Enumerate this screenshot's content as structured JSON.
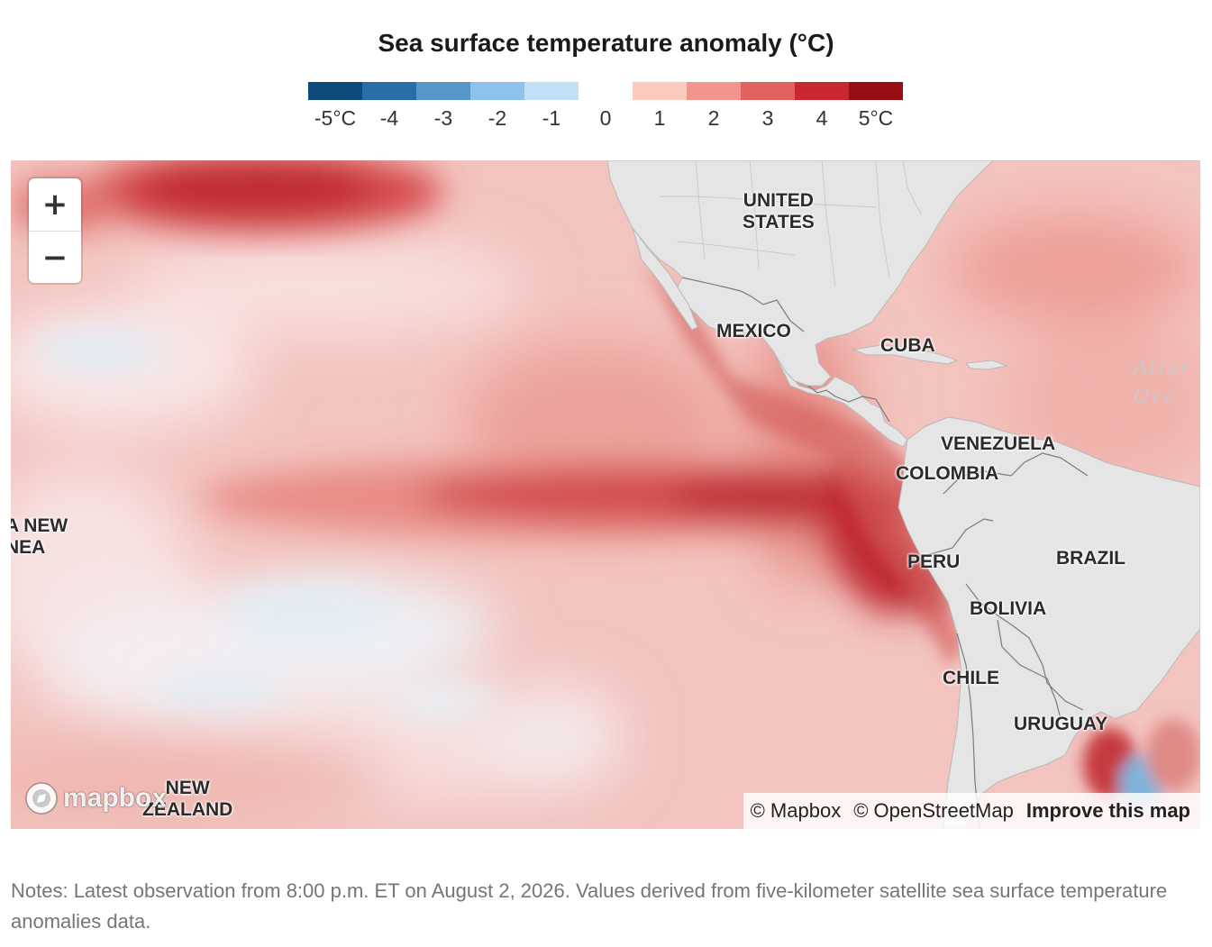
{
  "title": "Sea surface temperature anomaly (°C)",
  "legend": {
    "colors": [
      "#0e4a7b",
      "#2a6ea8",
      "#5597cb",
      "#8ec2ec",
      "#bfe0f6",
      "#ffffff",
      "#fbcbbd",
      "#f0958d",
      "#e0625d",
      "#c8282e",
      "#990d14"
    ],
    "labels": [
      "-5°C",
      "-4",
      "-3",
      "-2",
      "-1",
      "0",
      "1",
      "2",
      "3",
      "4",
      "5°C"
    ]
  },
  "map": {
    "countries": {
      "united_states": "UNITED\nSTATES",
      "mexico": "MEXICO",
      "cuba": "CUBA",
      "venezuela": "VENEZUELA",
      "colombia": "COLOMBIA",
      "peru": "PERU",
      "brazil": "BRAZIL",
      "bolivia": "BOLIVIA",
      "chile": "CHILE",
      "uruguay": "URUGUAY",
      "papua_new_guinea": "A NEW\nNEA",
      "new_zealand": "NEW\nZEALAND"
    },
    "ocean_label": "Atlar\nOce",
    "zoom_in": "+",
    "zoom_out": "−",
    "logo": "mapbox",
    "attribution": {
      "mapbox": "© Mapbox",
      "osm": "© OpenStreetMap",
      "improve": "Improve this map"
    }
  },
  "notes": "Notes: Latest observation from 8:00 p.m. ET on August 2, 2026. Values derived from five-kilometer satellite sea surface temperature anomalies data."
}
